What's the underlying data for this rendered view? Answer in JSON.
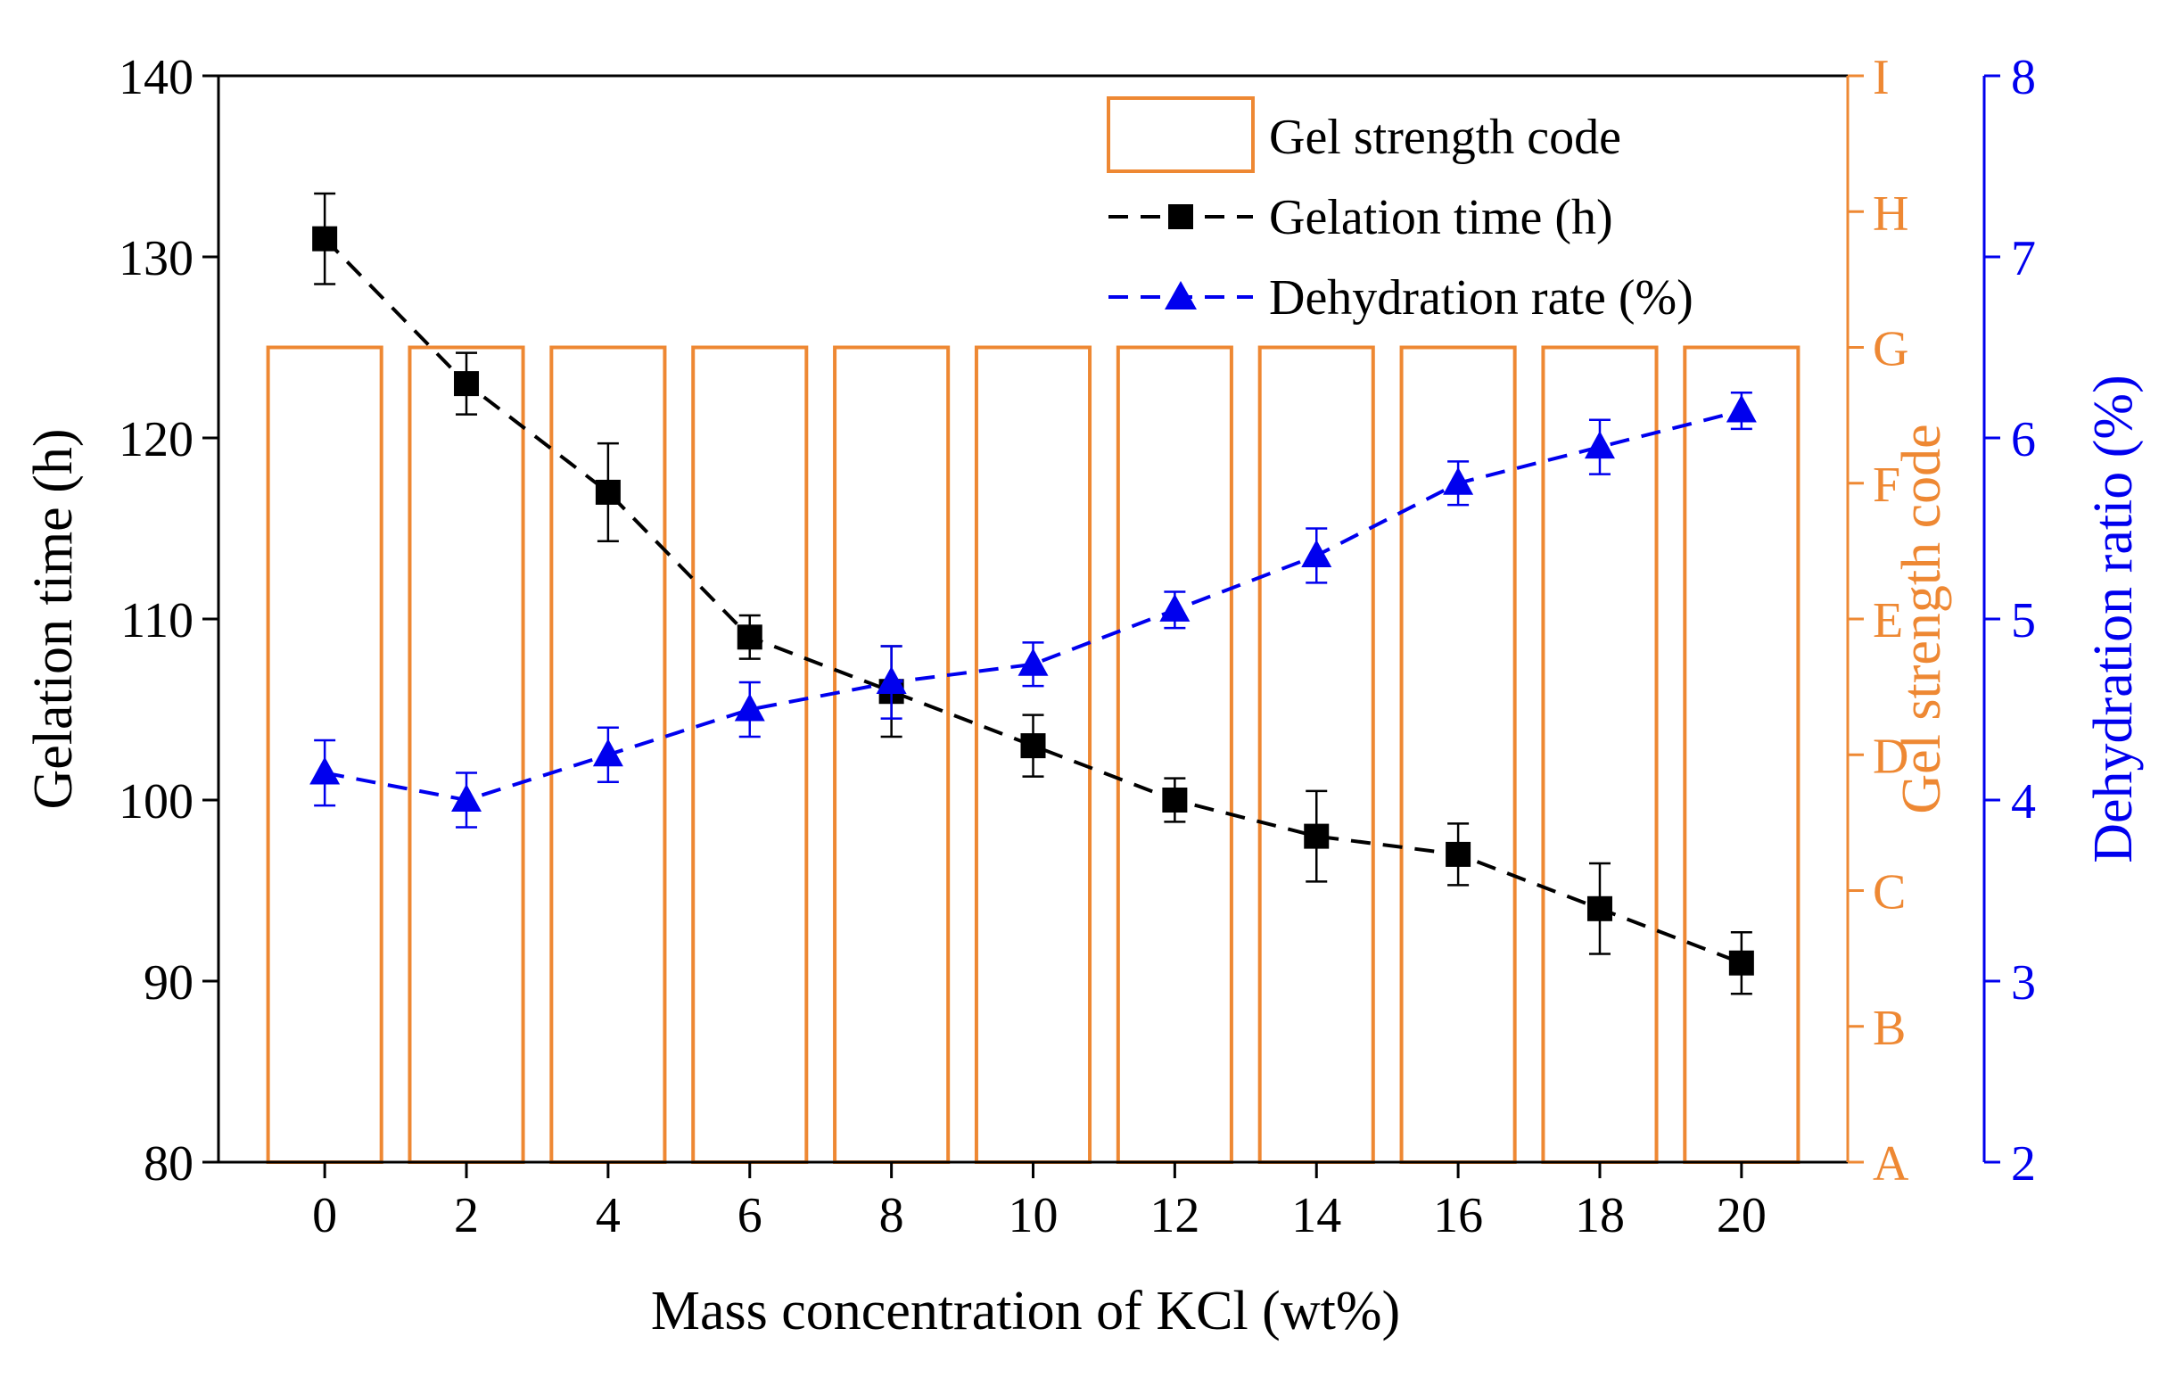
{
  "chart_data": {
    "type": "bar+line",
    "x": [
      0,
      2,
      4,
      6,
      8,
      10,
      12,
      14,
      16,
      18,
      20
    ],
    "x_tick_labels": [
      "0",
      "2",
      "4",
      "6",
      "8",
      "10",
      "12",
      "14",
      "16",
      "18",
      "20"
    ],
    "xlabel": "Mass concentration of KCl (wt%)",
    "xlim": [
      -1.5,
      21.5
    ],
    "axes": {
      "left": {
        "label": "Gelation time (h)",
        "ylim": [
          80,
          140
        ],
        "ticks": [
          "80",
          "90",
          "100",
          "110",
          "120",
          "130",
          "140"
        ],
        "tick_values": [
          80,
          90,
          100,
          110,
          120,
          130,
          140
        ],
        "color": "#000000"
      },
      "right_inner": {
        "label": "Gel strength code",
        "ticks": [
          "A",
          "B",
          "C",
          "D",
          "E",
          "F",
          "G",
          "H",
          "I"
        ],
        "color": "#EE8833"
      },
      "right_outer": {
        "label": "Dehydration ratio (%)",
        "ylim": [
          2,
          8
        ],
        "ticks": [
          "2",
          "3",
          "4",
          "5",
          "6",
          "7",
          "8"
        ],
        "tick_values": [
          2,
          3,
          4,
          5,
          6,
          7,
          8
        ],
        "color": "#0000EE"
      }
    },
    "series": [
      {
        "name": "Gel strength code",
        "type": "bar",
        "axis": "right_inner",
        "values": [
          "G",
          "G",
          "G",
          "G",
          "G",
          "G",
          "G",
          "G",
          "G",
          "G",
          "G"
        ],
        "color": "#EE8833"
      },
      {
        "name": "Gelation time (h)",
        "type": "line",
        "axis": "left",
        "marker": "square",
        "line_style": "dashed",
        "values": [
          131,
          123,
          117,
          109,
          106,
          103,
          100,
          98,
          97,
          94,
          91
        ],
        "error": [
          2.5,
          1.7,
          2.7,
          1.2,
          2.5,
          1.7,
          1.2,
          2.5,
          1.7,
          2.5,
          1.7
        ],
        "color": "#000000"
      },
      {
        "name": "Dehydration rate (%)",
        "type": "line",
        "axis": "right_outer",
        "marker": "triangle",
        "line_style": "dashed",
        "values": [
          4.15,
          4.0,
          4.25,
          4.5,
          4.65,
          4.75,
          5.05,
          5.35,
          5.75,
          5.95,
          6.15
        ],
        "error": [
          0.18,
          0.15,
          0.15,
          0.15,
          0.2,
          0.12,
          0.1,
          0.15,
          0.12,
          0.15,
          0.1
        ],
        "color": "#0000EE"
      }
    ],
    "legend": {
      "position": "top-right",
      "entries": [
        "Gel strength code",
        "Gelation time (h)",
        "Dehydration rate (%)"
      ]
    }
  }
}
